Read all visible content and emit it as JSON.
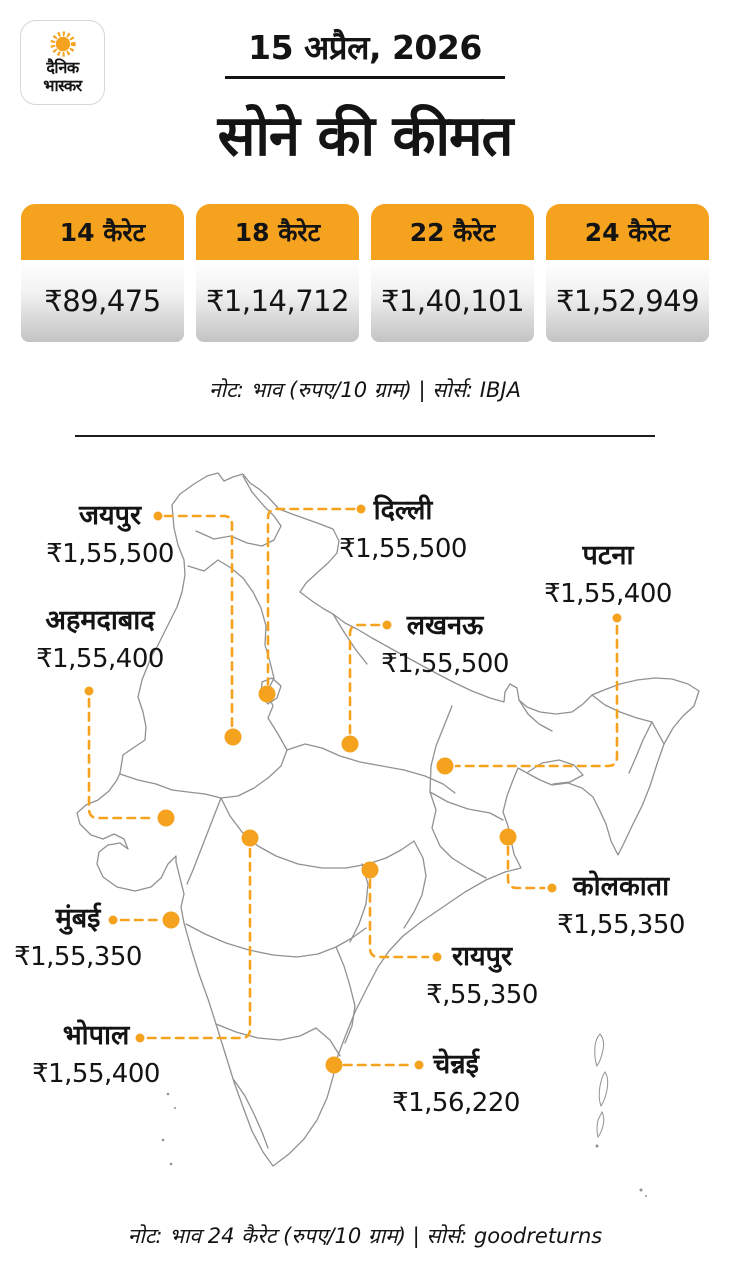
{
  "brand": {
    "logo_line1": "दैनिक",
    "logo_line2": "भास्कर"
  },
  "header": {
    "date": "15 अप्रैल, 2026",
    "title": "सोने की कीमत"
  },
  "price_cards": [
    {
      "karat": "14 कैरेट",
      "price": "₹89,475"
    },
    {
      "karat": "18 कैरेट",
      "price": "₹1,14,712"
    },
    {
      "karat": "22 कैरेट",
      "price": "₹1,40,101"
    },
    {
      "karat": "24 कैरेट",
      "price": "₹1,52,949"
    }
  ],
  "note_top": "नोट: भाव (रुपए/10 ग्राम)  |  सोर्स: IBJA",
  "map": {
    "cities": [
      {
        "id": "jaipur",
        "name": "जयपुर",
        "price": "₹1,55,500"
      },
      {
        "id": "delhi",
        "name": "दिल्ली",
        "price": "₹1,55,500"
      },
      {
        "id": "ahmedabad",
        "name": "अहमदाबाद",
        "price": "₹1,55,400"
      },
      {
        "id": "lucknow",
        "name": "लखनऊ",
        "price": "₹1,55,500"
      },
      {
        "id": "patna",
        "name": "पटना",
        "price": "₹1,55,400"
      },
      {
        "id": "kolkata",
        "name": "कोलकाता",
        "price": "₹1,55,350"
      },
      {
        "id": "raipur",
        "name": "रायपुर",
        "price": "₹,55,350"
      },
      {
        "id": "mumbai",
        "name": "मुंबई",
        "price": "₹1,55,350"
      },
      {
        "id": "bhopal",
        "name": "भोपाल",
        "price": "₹1,55,400"
      },
      {
        "id": "chennai",
        "name": "चेन्नई",
        "price": "₹1,56,220"
      }
    ]
  },
  "note_bottom": "नोट: भाव 24 कैरेट (रुपए/10 ग्राम)  |  सोर्स: goodreturns",
  "colors": {
    "accent_orange": "#F5A21E",
    "map_outline": "#919191",
    "text": "#141414"
  }
}
